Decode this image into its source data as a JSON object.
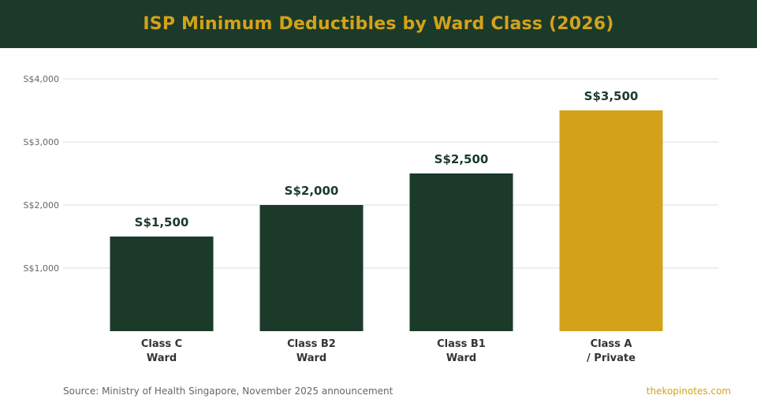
{
  "colors": {
    "header_bg": "#1b3a2a",
    "title": "#d4a21a",
    "bar_default": "#1b3a2a",
    "bar_highlight": "#d4a21a",
    "grid": "#dddddd"
  },
  "chart_data": {
    "type": "bar",
    "title": "ISP Minimum Deductibles by Ward Class (2026)",
    "categories": [
      [
        "Class C",
        "Ward"
      ],
      [
        "Class B2",
        "Ward"
      ],
      [
        "Class B1",
        "Ward"
      ],
      [
        "Class A",
        "/ Private"
      ]
    ],
    "values": [
      1500,
      2000,
      2500,
      3500
    ],
    "value_labels": [
      "S$1,500",
      "S$2,000",
      "S$2,500",
      "S$3,500"
    ],
    "highlight_index": 3,
    "ylim": [
      0,
      4000
    ],
    "yticks": [
      1000,
      2000,
      3000,
      4000
    ],
    "ytick_labels": [
      "S$1,000",
      "S$2,000",
      "S$3,000",
      "S$4,000"
    ],
    "grid": true,
    "xlabel": "",
    "ylabel": ""
  },
  "footer": {
    "source": "Source: Ministry of Health Singapore, November 2025 announcement",
    "brand": "thekopinotes.com"
  }
}
